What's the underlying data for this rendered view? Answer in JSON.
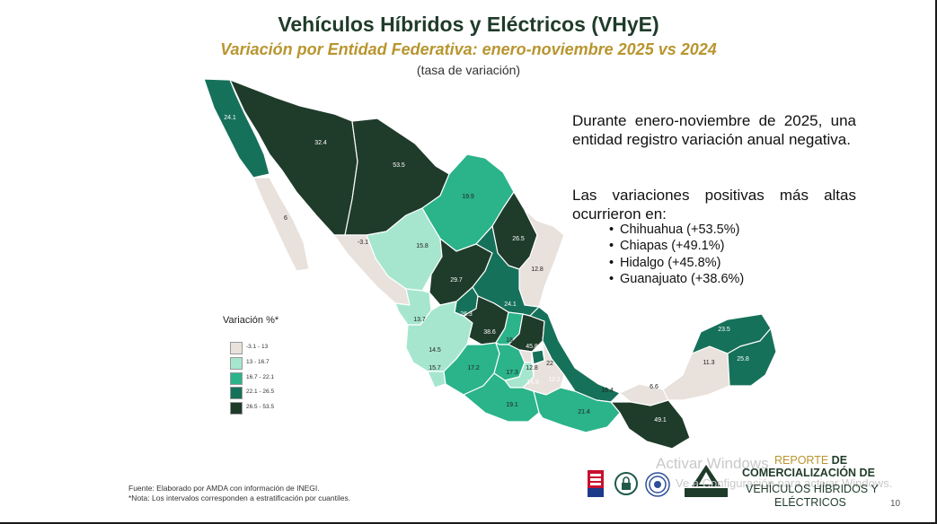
{
  "header": {
    "title": "Vehículos Híbridos y Eléctricos (VHyE)",
    "subtitle": "Variación por Entidad Federativa: enero-noviembre 2025 vs 2024",
    "unit": "(tasa de variación)"
  },
  "narrative": {
    "para1": "Durante enero-noviembre de 2025, una entidad registro variación anual negativa.",
    "para2": "Las variaciones positivas más altas ocurrieron en:",
    "bullets": [
      "Chihuahua (+53.5%)",
      "Chiapas (+49.1%)",
      "Hidalgo (+45.8%)",
      "Guanajuato (+38.6%)"
    ]
  },
  "legend": {
    "title": "Variación %*",
    "items": [
      {
        "label": "-3.1 - 13",
        "color": "#e8e1dc"
      },
      {
        "label": "13 - 16.7",
        "color": "#a6e6cf"
      },
      {
        "label": "16.7 - 22.1",
        "color": "#2bb38a"
      },
      {
        "label": "22.1 - 26.5",
        "color": "#16715a"
      },
      {
        "label": "26.5 - 53.5",
        "color": "#1f3b2a"
      }
    ]
  },
  "map_labels": [
    "24.1",
    "32.4",
    "53.5",
    "6",
    "-3.1",
    "15.8",
    "19.9",
    "26.5",
    "12.8",
    "29.7",
    "26.3",
    "24.1",
    "13.7",
    "38.6",
    "18",
    "45.8",
    "14.5",
    "15.7",
    "17.2",
    "17.3",
    "12.8",
    "22",
    "14.9",
    "12.2",
    "16.4",
    "19.1",
    "21.4",
    "6.6",
    "49.1",
    "23.5",
    "25.8",
    "11.3"
  ],
  "footer": {
    "source": "Fuente: Elaborado por AMDA con información de INEGI.",
    "note": "*Nota: Los intervalos corresponden a estratificación por cuantiles."
  },
  "logos": {
    "gptw": "Great Place To Work",
    "amda": "AMDA"
  },
  "watermark": {
    "line1": "Activar Windows",
    "line2": "Ve a Configuración para activar Windows."
  },
  "report": {
    "l1a": "REPORTE ",
    "l1b": "DE",
    "l2": "COMERCIALIZACIÓN DE",
    "l3": "VEHÍCULOS HÍBRIDOS Y",
    "l4": "ELÉCTRICOS",
    "page": "10"
  }
}
